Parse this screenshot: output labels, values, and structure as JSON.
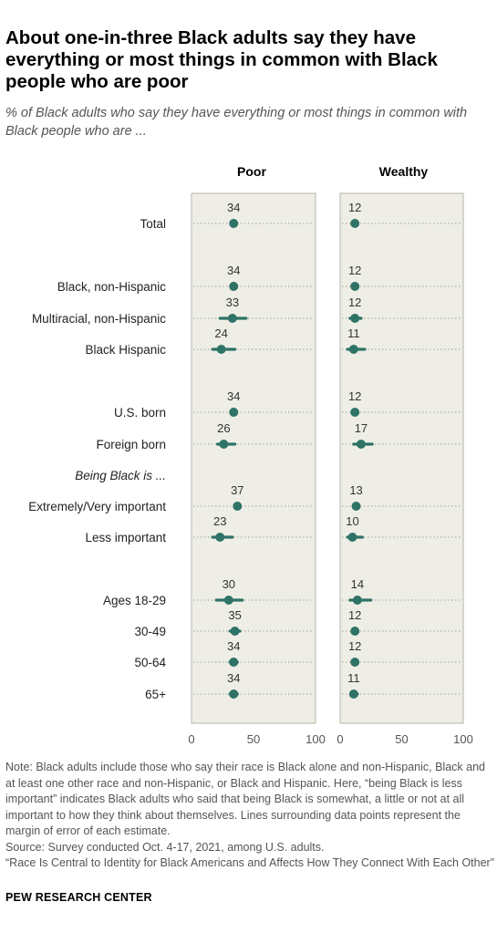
{
  "title": "About one-in-three Black adults say they have everything or most things in common with Black people who are poor",
  "subtitle": "% of Black adults who say they have everything or most things in common with Black people who are ...",
  "notes": {
    "note": "Note: Black adults include those who say their race is Black alone and non-Hispanic, Black and at least one other race and non-Hispanic, or Black and Hispanic. Here, “being Black is less important” indicates Black adults who said that being Black is somewhat, a little or not at all important to how they think about themselves. Lines surrounding data points represent the margin of error of each estimate.",
    "source": "Source: Survey conducted Oct. 4-17, 2021, among U.S. adults.",
    "report": "“Race Is Central to Identity for Black Americans and Affects How They Connect With Each Other”"
  },
  "brand": "PEW RESEARCH CENTER",
  "colors": {
    "dot": "#2e7366",
    "panel": "#efeee6",
    "panel_border": "#b7b6a8",
    "guide": "#9aa59f"
  },
  "chart_data": {
    "type": "scatter",
    "title": "",
    "xlim": [
      0,
      100
    ],
    "ticks": [
      0,
      50,
      100
    ],
    "panels": [
      "Poor",
      "Wealthy"
    ],
    "section_header": "Being Black is ...",
    "rows": [
      {
        "label": "Total",
        "poor": 34,
        "poor_moe": [
          32,
          36
        ],
        "wealthy": 12,
        "wealthy_moe": [
          11,
          13
        ]
      },
      {
        "label": "Black, non-Hispanic",
        "poor": 34,
        "poor_moe": [
          32,
          36
        ],
        "wealthy": 12,
        "wealthy_moe": [
          11,
          13
        ]
      },
      {
        "label": "Multiracial, non-Hispanic",
        "poor": 33,
        "poor_moe": [
          23,
          44
        ],
        "wealthy": 12,
        "wealthy_moe": [
          8,
          17
        ]
      },
      {
        "label": "Black Hispanic",
        "poor": 24,
        "poor_moe": [
          17,
          35
        ],
        "wealthy": 11,
        "wealthy_moe": [
          6,
          20
        ]
      },
      {
        "label": "U.S. born",
        "poor": 34,
        "poor_moe": [
          32,
          36
        ],
        "wealthy": 12,
        "wealthy_moe": [
          11,
          13
        ]
      },
      {
        "label": "Foreign born",
        "poor": 26,
        "poor_moe": [
          21,
          35
        ],
        "wealthy": 17,
        "wealthy_moe": [
          11,
          26
        ]
      },
      {
        "label": "Extremely/Very important",
        "poor": 37,
        "poor_moe": [
          35,
          39
        ],
        "wealthy": 13,
        "wealthy_moe": [
          12,
          14
        ]
      },
      {
        "label": "Less important",
        "poor": 23,
        "poor_moe": [
          17,
          33
        ],
        "wealthy": 10,
        "wealthy_moe": [
          6,
          18
        ]
      },
      {
        "label": "Ages 18-29",
        "poor": 30,
        "poor_moe": [
          20,
          41
        ],
        "wealthy": 14,
        "wealthy_moe": [
          8,
          25
        ]
      },
      {
        "label": "30-49",
        "poor": 35,
        "poor_moe": [
          31,
          39
        ],
        "wealthy": 12,
        "wealthy_moe": [
          10,
          14
        ]
      },
      {
        "label": "50-64",
        "poor": 34,
        "poor_moe": [
          31,
          37
        ],
        "wealthy": 12,
        "wealthy_moe": [
          10,
          14
        ]
      },
      {
        "label": "65+",
        "poor": 34,
        "poor_moe": [
          31,
          37
        ],
        "wealthy": 11,
        "wealthy_moe": [
          9,
          14
        ]
      }
    ]
  }
}
